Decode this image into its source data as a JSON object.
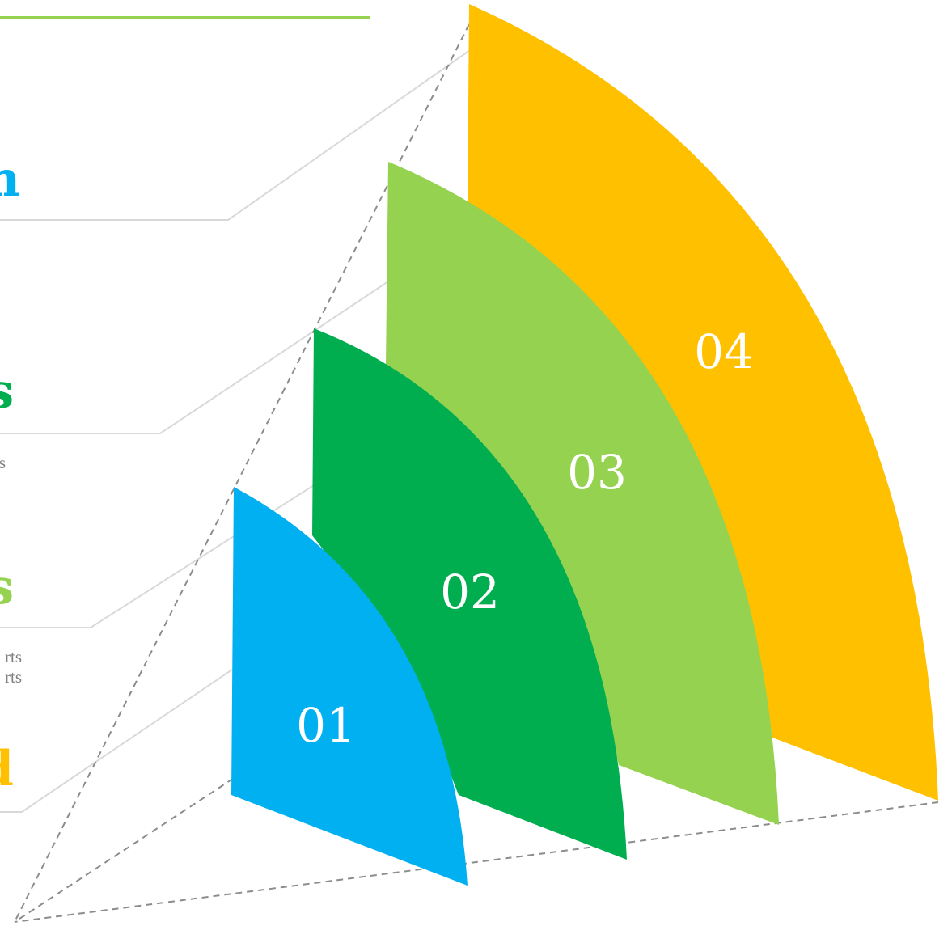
{
  "colors": {
    "blue": "#00b0f0",
    "dark_green": "#00ad4f",
    "light_green": "#95d250",
    "gold": "#ffc000",
    "connector": "#d9d9d9",
    "dashed": "#8c8c8c",
    "number_text": "#ffffff",
    "description_text": "#7f7f7f"
  },
  "stages": [
    {
      "number": "01",
      "heading": "d",
      "color": "gold",
      "description": []
    },
    {
      "number": "02",
      "heading": "s",
      "color": "light_green",
      "description": [
        "rts",
        "rts"
      ]
    },
    {
      "number": "03",
      "heading": "s",
      "color": "dark_green",
      "description": [
        "s"
      ]
    },
    {
      "number": "04",
      "heading": "n",
      "color": "blue",
      "description": []
    }
  ],
  "fans": [
    {
      "number": "01",
      "color": "blue"
    },
    {
      "number": "02",
      "color": "dark_green"
    },
    {
      "number": "03",
      "color": "light_green"
    },
    {
      "number": "04",
      "color": "gold"
    }
  ]
}
